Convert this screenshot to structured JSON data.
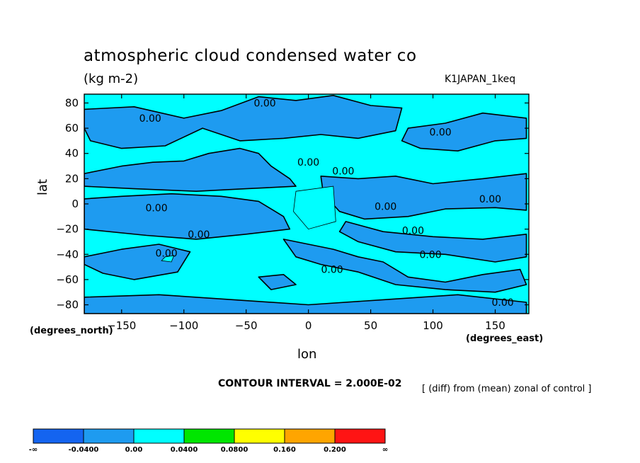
{
  "chart_data": {
    "type": "heatmap",
    "title": "atmospheric cloud condensed water co",
    "units": "(kg m-2)",
    "run_label": "K1JAPAN_1keq",
    "xlabel": "lon",
    "xlabel_units": "(degrees_east)",
    "ylabel": "lat",
    "ylabel_units": "(degrees_north)",
    "xlim": [
      -180,
      177
    ],
    "ylim": [
      -87,
      87
    ],
    "x_ticks": [
      -150,
      -100,
      -50,
      0,
      50,
      100,
      150
    ],
    "x_tick_labels": [
      "−150",
      "−100",
      "−50",
      "0",
      "50",
      "100",
      "150"
    ],
    "y_ticks": [
      80,
      60,
      40,
      20,
      0,
      -20,
      -40,
      -60,
      -80
    ],
    "y_tick_labels": [
      "80",
      "60",
      "40",
      "20",
      "0",
      "−20",
      "−40",
      "−60",
      "−80"
    ],
    "contour_interval_text": "CONTOUR INTERVAL = 2.000E-02",
    "note": "[ (diff) from (mean) zonal of control ]",
    "background_level_color": "#00ffff",
    "negative_level_color": "#1e9bf0",
    "colorbar": {
      "colors": [
        "#1464f0",
        "#1e9bf0",
        "#00ffff",
        "#00e600",
        "#ffff00",
        "#ffa500",
        "#ff1414"
      ],
      "labels": [
        "-∞",
        "-0.0400",
        "0.00",
        "0.0400",
        "0.0800",
        "0.160",
        "0.200",
        "∞"
      ]
    },
    "contour_labels": [
      {
        "text": "0.00",
        "lon": -35,
        "lat": 80
      },
      {
        "text": "0.00",
        "lon": -127,
        "lat": 68
      },
      {
        "text": "0.00",
        "lon": 106,
        "lat": 57
      },
      {
        "text": "0.00",
        "lon": 0,
        "lat": 33
      },
      {
        "text": "0.00",
        "lon": 28,
        "lat": 26
      },
      {
        "text": "0.00",
        "lon": 146,
        "lat": 4
      },
      {
        "text": "0.00",
        "lon": -122,
        "lat": -3
      },
      {
        "text": "0.00",
        "lon": 62,
        "lat": -2
      },
      {
        "text": "0.00",
        "lon": 84,
        "lat": -21
      },
      {
        "text": "0.00",
        "lon": -88,
        "lat": -24
      },
      {
        "text": "0.00",
        "lon": 98,
        "lat": -40
      },
      {
        "text": "0.00",
        "lon": -114,
        "lat": -39
      },
      {
        "text": "0.00",
        "lon": 19,
        "lat": -52
      },
      {
        "text": "0.00",
        "lon": 156,
        "lat": -78
      }
    ],
    "negative_regions": [
      [
        [
          -180,
          75
        ],
        [
          -140,
          77
        ],
        [
          -100,
          68
        ],
        [
          -70,
          74
        ],
        [
          -40,
          85
        ],
        [
          -10,
          82
        ],
        [
          20,
          86
        ],
        [
          50,
          78
        ],
        [
          75,
          76
        ],
        [
          70,
          58
        ],
        [
          40,
          52
        ],
        [
          10,
          55
        ],
        [
          -20,
          52
        ],
        [
          -55,
          50
        ],
        [
          -85,
          60
        ],
        [
          -115,
          46
        ],
        [
          -150,
          44
        ],
        [
          -175,
          50
        ],
        [
          -180,
          60
        ]
      ],
      [
        [
          80,
          60
        ],
        [
          110,
          64
        ],
        [
          140,
          72
        ],
        [
          175,
          68
        ],
        [
          175,
          52
        ],
        [
          150,
          50
        ],
        [
          120,
          42
        ],
        [
          90,
          44
        ],
        [
          75,
          50
        ]
      ],
      [
        [
          -180,
          24
        ],
        [
          -150,
          30
        ],
        [
          -125,
          33
        ],
        [
          -100,
          34
        ],
        [
          -80,
          40
        ],
        [
          -55,
          44
        ],
        [
          -40,
          40
        ],
        [
          -30,
          30
        ],
        [
          -15,
          20
        ],
        [
          -10,
          14
        ],
        [
          -50,
          12
        ],
        [
          -90,
          10
        ],
        [
          -140,
          12
        ],
        [
          -180,
          14
        ]
      ],
      [
        [
          10,
          22
        ],
        [
          40,
          20
        ],
        [
          70,
          22
        ],
        [
          100,
          16
        ],
        [
          140,
          20
        ],
        [
          175,
          24
        ],
        [
          175,
          -5
        ],
        [
          150,
          -3
        ],
        [
          110,
          -4
        ],
        [
          80,
          -10
        ],
        [
          45,
          -12
        ],
        [
          25,
          -6
        ],
        [
          12,
          8
        ]
      ],
      [
        [
          -180,
          4
        ],
        [
          -150,
          6
        ],
        [
          -110,
          8
        ],
        [
          -70,
          6
        ],
        [
          -40,
          2
        ],
        [
          -20,
          -10
        ],
        [
          -15,
          -20
        ],
        [
          -50,
          -24
        ],
        [
          -90,
          -28
        ],
        [
          -130,
          -25
        ],
        [
          -180,
          -20
        ]
      ],
      [
        [
          30,
          -14
        ],
        [
          60,
          -22
        ],
        [
          100,
          -26
        ],
        [
          140,
          -28
        ],
        [
          175,
          -24
        ],
        [
          175,
          -42
        ],
        [
          150,
          -46
        ],
        [
          110,
          -40
        ],
        [
          70,
          -38
        ],
        [
          40,
          -30
        ],
        [
          25,
          -22
        ]
      ],
      [
        [
          -20,
          -28
        ],
        [
          0,
          -32
        ],
        [
          20,
          -36
        ],
        [
          40,
          -42
        ],
        [
          60,
          -46
        ],
        [
          80,
          -58
        ],
        [
          110,
          -62
        ],
        [
          140,
          -56
        ],
        [
          170,
          -52
        ],
        [
          175,
          -64
        ],
        [
          150,
          -70
        ],
        [
          110,
          -68
        ],
        [
          70,
          -64
        ],
        [
          40,
          -54
        ],
        [
          10,
          -48
        ],
        [
          -10,
          -42
        ]
      ],
      [
        [
          -180,
          -42
        ],
        [
          -150,
          -36
        ],
        [
          -120,
          -32
        ],
        [
          -95,
          -38
        ],
        [
          -105,
          -54
        ],
        [
          -140,
          -60
        ],
        [
          -165,
          -55
        ],
        [
          -180,
          -48
        ]
      ],
      [
        [
          -40,
          -58
        ],
        [
          -20,
          -56
        ],
        [
          -10,
          -64
        ],
        [
          -30,
          -68
        ]
      ],
      [
        [
          -180,
          -74
        ],
        [
          -120,
          -72
        ],
        [
          -60,
          -76
        ],
        [
          0,
          -80
        ],
        [
          60,
          -76
        ],
        [
          120,
          -72
        ],
        [
          175,
          -78
        ],
        [
          175,
          -87
        ],
        [
          -180,
          -87
        ]
      ]
    ],
    "positive_regions": [
      [
        [
          -10,
          10
        ],
        [
          20,
          14
        ],
        [
          22,
          -14
        ],
        [
          0,
          -20
        ],
        [
          -12,
          -6
        ]
      ],
      [
        [
          -115,
          -42
        ],
        [
          -108,
          -41
        ],
        [
          -110,
          -46
        ],
        [
          -118,
          -45
        ]
      ]
    ]
  }
}
